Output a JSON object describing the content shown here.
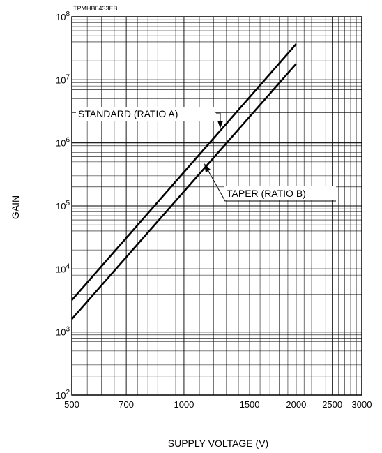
{
  "figure_code": "TPMHB0433EB",
  "chart_data": {
    "type": "line",
    "title": "",
    "xlabel": "SUPPLY VOLTAGE (V)",
    "ylabel": "GAIN",
    "x_scale": "log",
    "y_scale": "log",
    "xlim": [
      500,
      3000
    ],
    "ylim": [
      100,
      100000000
    ],
    "x_ticks": [
      {
        "value": 500,
        "label": "500"
      },
      {
        "value": 700,
        "label": "700"
      },
      {
        "value": 1000,
        "label": "1000"
      },
      {
        "value": 1500,
        "label": "1500"
      },
      {
        "value": 2000,
        "label": "2000"
      },
      {
        "value": 2500,
        "label": "2500"
      },
      {
        "value": 3000,
        "label": "3000"
      }
    ],
    "y_ticks": [
      {
        "value": 100,
        "base": "10",
        "exp": "2"
      },
      {
        "value": 1000,
        "base": "10",
        "exp": "3"
      },
      {
        "value": 10000,
        "base": "10",
        "exp": "4"
      },
      {
        "value": 100000,
        "base": "10",
        "exp": "5"
      },
      {
        "value": 1000000,
        "base": "10",
        "exp": "6"
      },
      {
        "value": 10000000,
        "base": "10",
        "exp": "7"
      },
      {
        "value": 100000000,
        "base": "10",
        "exp": "8"
      }
    ],
    "grid": true,
    "series": [
      {
        "name": "STANDARD (RATIO A)",
        "x": [
          500,
          2000
        ],
        "y": [
          3200,
          37000000
        ]
      },
      {
        "name": "TAPER (RATIO B)",
        "x": [
          500,
          2000
        ],
        "y": [
          1600,
          18000000
        ]
      }
    ],
    "colors": {
      "line": "#000000",
      "grid": "#000000",
      "background": "#ffffff"
    }
  }
}
